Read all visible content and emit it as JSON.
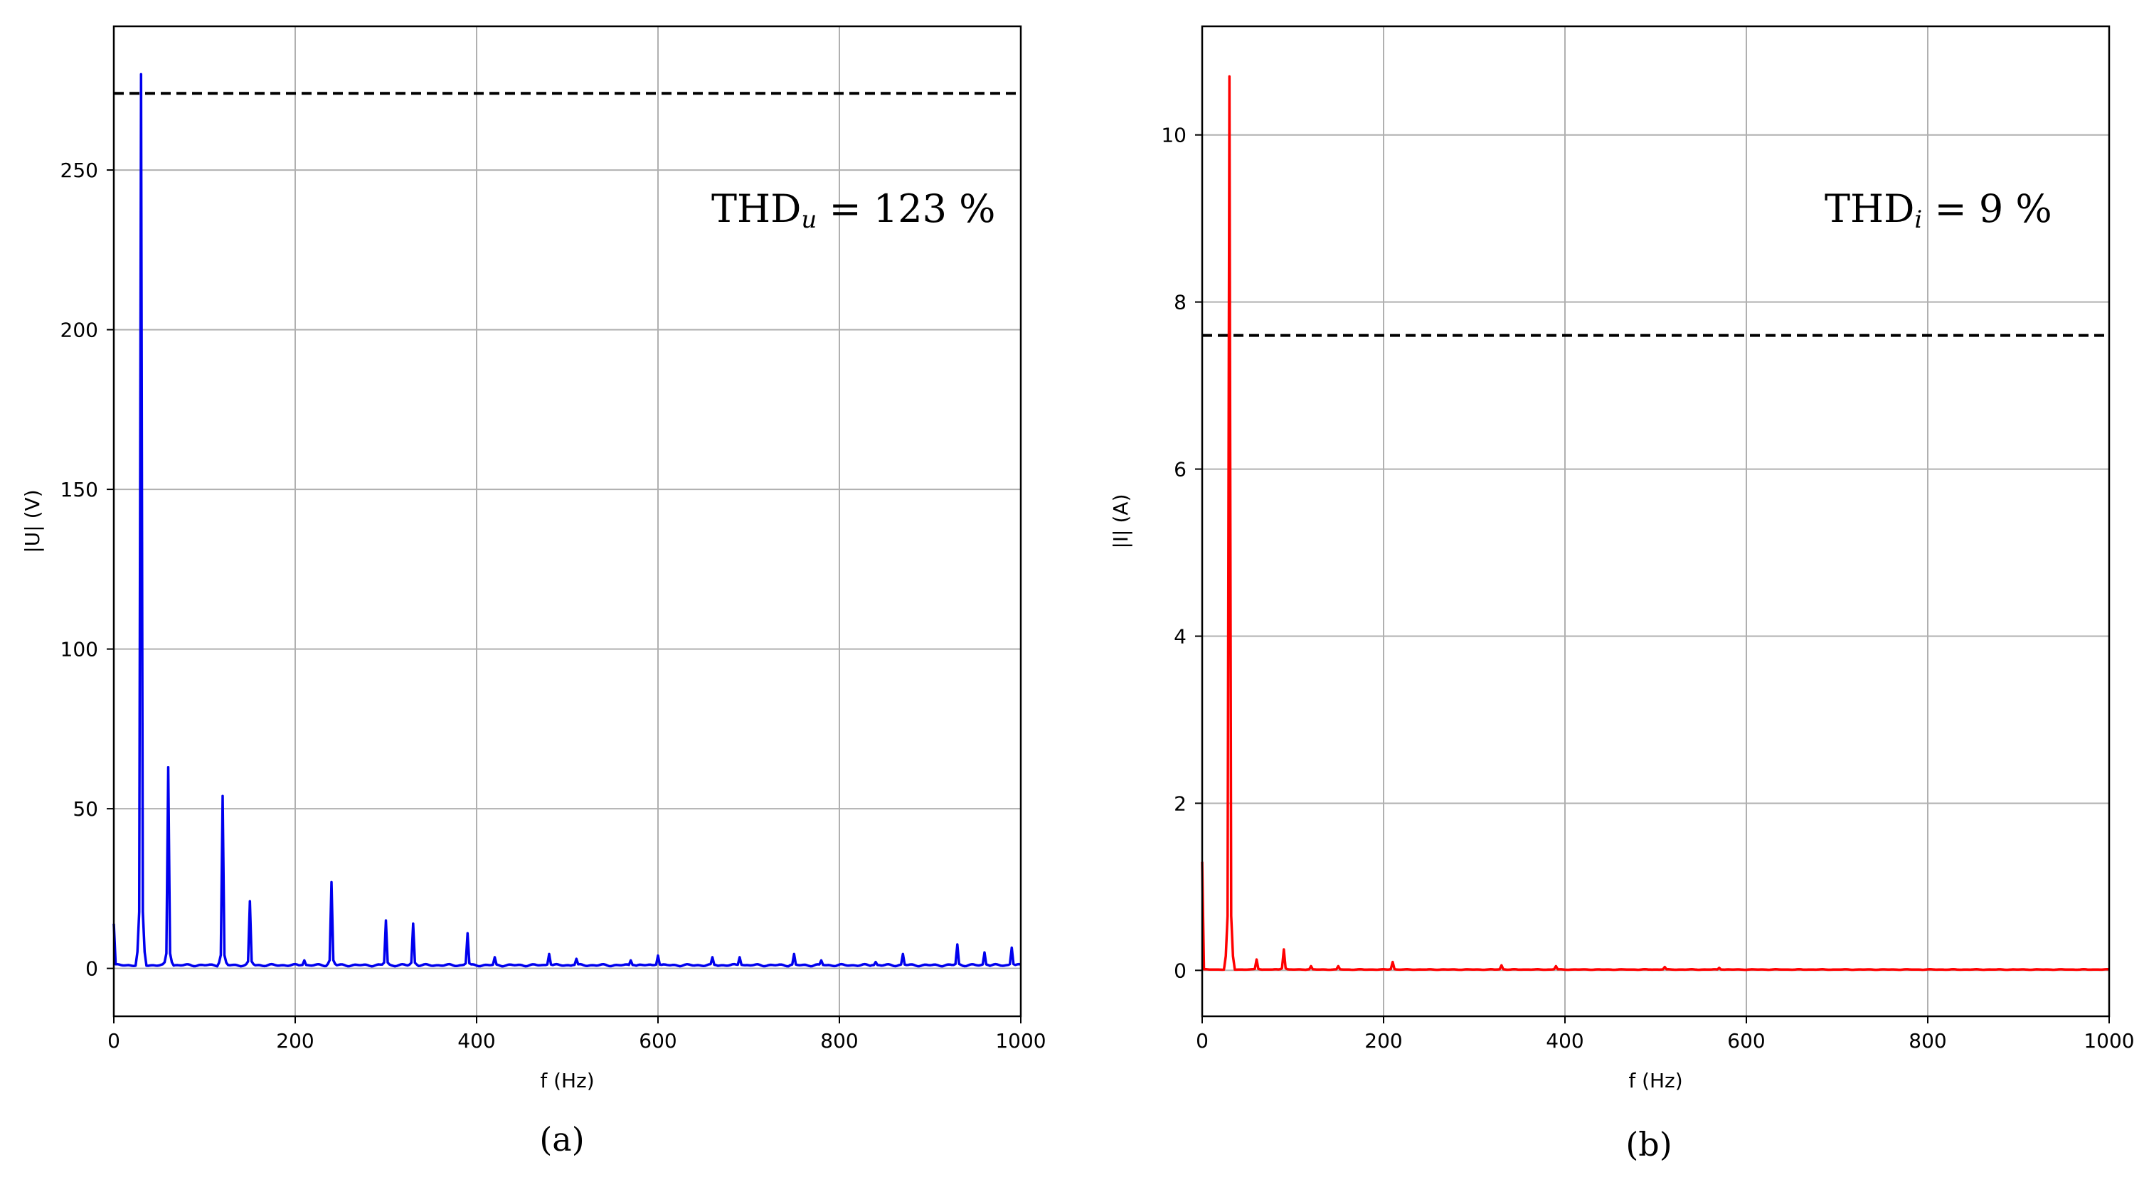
{
  "chart_data": [
    {
      "id": "a",
      "type": "line",
      "caption": "(a)",
      "xlabel": "f (Hz)",
      "ylabel": "|U| (V)",
      "xlim": [
        0,
        1000
      ],
      "ylim": [
        -15,
        295
      ],
      "xticks": [
        0,
        200,
        400,
        600,
        800,
        1000
      ],
      "yticks": [
        0,
        50,
        100,
        150,
        200,
        250
      ],
      "grid": true,
      "color": "#0000ee",
      "threshold": 274,
      "annotation": {
        "main": "THD",
        "sub": "u",
        "rest": " = 123 %"
      },
      "baseline": 1,
      "start_value": 14,
      "peaks": [
        {
          "x": 30,
          "y": 280
        },
        {
          "x": 60,
          "y": 63
        },
        {
          "x": 120,
          "y": 54
        },
        {
          "x": 150,
          "y": 21
        },
        {
          "x": 210,
          "y": 2.5
        },
        {
          "x": 240,
          "y": 27
        },
        {
          "x": 300,
          "y": 15
        },
        {
          "x": 330,
          "y": 14
        },
        {
          "x": 390,
          "y": 11
        },
        {
          "x": 420,
          "y": 3.5
        },
        {
          "x": 480,
          "y": 4.5
        },
        {
          "x": 510,
          "y": 3
        },
        {
          "x": 570,
          "y": 2.5
        },
        {
          "x": 600,
          "y": 4
        },
        {
          "x": 660,
          "y": 3.5
        },
        {
          "x": 690,
          "y": 3.5
        },
        {
          "x": 750,
          "y": 4.5
        },
        {
          "x": 780,
          "y": 2.5
        },
        {
          "x": 840,
          "y": 2
        },
        {
          "x": 870,
          "y": 4.5
        },
        {
          "x": 930,
          "y": 7.5
        },
        {
          "x": 960,
          "y": 5
        },
        {
          "x": 990,
          "y": 6.5
        }
      ]
    },
    {
      "id": "b",
      "type": "line",
      "caption": "(b)",
      "xlabel": "f (Hz)",
      "ylabel": "|I| (A)",
      "xlim": [
        0,
        1000
      ],
      "ylim": [
        -0.55,
        11.3
      ],
      "xticks": [
        0,
        200,
        400,
        600,
        800,
        1000
      ],
      "yticks": [
        0,
        2,
        4,
        6,
        8,
        10
      ],
      "grid": true,
      "color": "#ff0000",
      "threshold": 7.6,
      "annotation": {
        "main": "THD",
        "sub": "i",
        "rest": " = 9 %"
      },
      "baseline": 0.01,
      "start_value": 1.3,
      "peaks": [
        {
          "x": 30,
          "y": 10.7
        },
        {
          "x": 60,
          "y": 0.13
        },
        {
          "x": 90,
          "y": 0.25
        },
        {
          "x": 120,
          "y": 0.05
        },
        {
          "x": 150,
          "y": 0.05
        },
        {
          "x": 210,
          "y": 0.1
        },
        {
          "x": 330,
          "y": 0.06
        },
        {
          "x": 390,
          "y": 0.05
        },
        {
          "x": 510,
          "y": 0.04
        },
        {
          "x": 570,
          "y": 0.03
        }
      ]
    }
  ]
}
